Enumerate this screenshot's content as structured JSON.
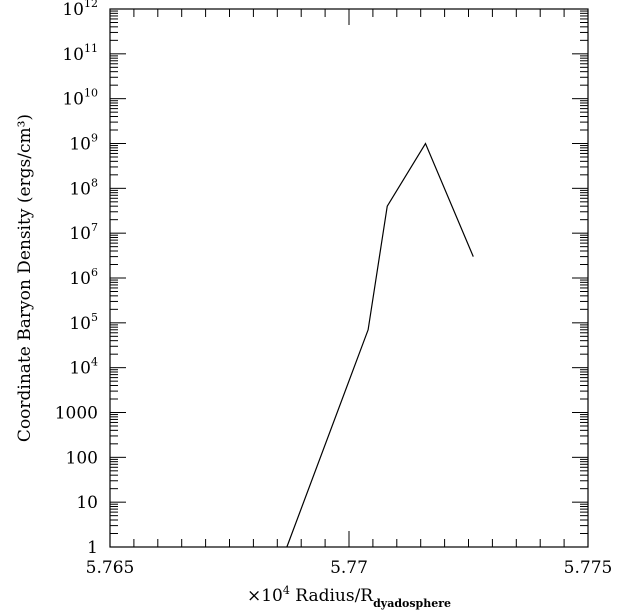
{
  "chart_data": {
    "type": "line",
    "title": "",
    "xlabel": {
      "prefix": "×10",
      "prefix_exp": "4",
      "main": " Radius/R",
      "subscript": "dyadosphere"
    },
    "ylabel": "Coordinate Baryon Density (ergs/cm³)",
    "xlim": [
      5.765,
      5.775
    ],
    "ylim": [
      1,
      1000000000000.0
    ],
    "yscale": "log",
    "grid": false,
    "x_ticks": [
      {
        "value": 5.765,
        "label": "5.765"
      },
      {
        "value": 5.77,
        "label": "5.77"
      },
      {
        "value": 5.775,
        "label": "5.775"
      }
    ],
    "y_ticks": [
      {
        "value": 1,
        "base": "1",
        "exp": ""
      },
      {
        "value": 10,
        "base": "10",
        "exp": ""
      },
      {
        "value": 100,
        "base": "100",
        "exp": ""
      },
      {
        "value": 1000,
        "base": "1000",
        "exp": ""
      },
      {
        "value": 10000,
        "base": "10",
        "exp": "4"
      },
      {
        "value": 100000,
        "base": "10",
        "exp": "5"
      },
      {
        "value": 1000000,
        "base": "10",
        "exp": "6"
      },
      {
        "value": 10000000,
        "base": "10",
        "exp": "7"
      },
      {
        "value": 100000000,
        "base": "10",
        "exp": "8"
      },
      {
        "value": 1000000000,
        "base": "10",
        "exp": "9"
      },
      {
        "value": 10000000000,
        "base": "10",
        "exp": "10"
      },
      {
        "value": 100000000000,
        "base": "10",
        "exp": "11"
      },
      {
        "value": 1000000000000,
        "base": "10",
        "exp": "12"
      }
    ],
    "series": [
      {
        "color": "#000000",
        "x": [
          5.7687,
          5.7704,
          5.7708,
          5.7716,
          5.7726
        ],
        "y": [
          1,
          70000,
          40000000,
          1000000000,
          3000000
        ]
      }
    ]
  }
}
